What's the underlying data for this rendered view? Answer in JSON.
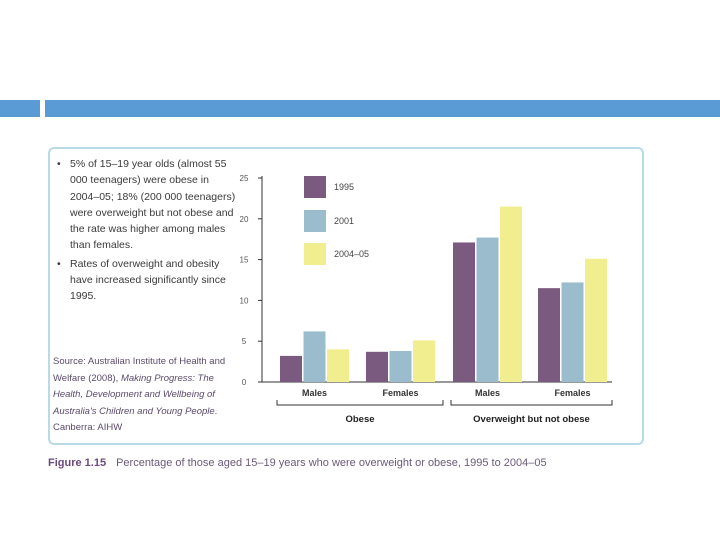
{
  "bullets": [
    "5% of 15–19 year olds (almost 55 000 teenagers) were obese in 2004–05; 18% (200 000 teenagers) were overweight but not obese and the rate was higher among males than females.",
    "Rates of overweight and obesity have increased significantly since 1995."
  ],
  "source": {
    "prefix": "Source: Australian Institute of Health and Welfare (2008), ",
    "title": "Making Progress: The Health, Development and Wellbeing of Australia's Children and Young People",
    "suffix": ". Canberra: AIHW"
  },
  "caption": {
    "figure": "Figure 1.15",
    "text": "Percentage of those aged 15–19 years who were overweight or obese, 1995 to 2004–05"
  },
  "colors": {
    "bar": "#5b9bd5",
    "panel_border": "#b9dbe6",
    "axis": "#333333"
  },
  "chart_data": {
    "type": "bar",
    "title": "",
    "xlabel": "",
    "ylabel": "",
    "ylim": [
      0,
      25
    ],
    "yticks": [
      "0",
      "5",
      "10",
      "15",
      "20",
      "25"
    ],
    "categories": [
      "Males",
      "Females",
      "Males",
      "Females"
    ],
    "groups": [
      {
        "label": "Obese",
        "categories": [
          0,
          1
        ]
      },
      {
        "label": "Overweight but not obese",
        "categories": [
          2,
          3
        ]
      }
    ],
    "series": [
      {
        "name": "1995",
        "color": "#7a5a7e",
        "values": [
          3.2,
          3.7,
          17.1,
          11.5
        ]
      },
      {
        "name": "2001",
        "color": "#9bbccc",
        "values": [
          6.2,
          3.8,
          17.7,
          12.2
        ]
      },
      {
        "name": "2004–05",
        "color": "#f0ee8f",
        "values": [
          4.0,
          5.1,
          21.5,
          15.1
        ]
      }
    ],
    "legend_position": "top-left"
  }
}
